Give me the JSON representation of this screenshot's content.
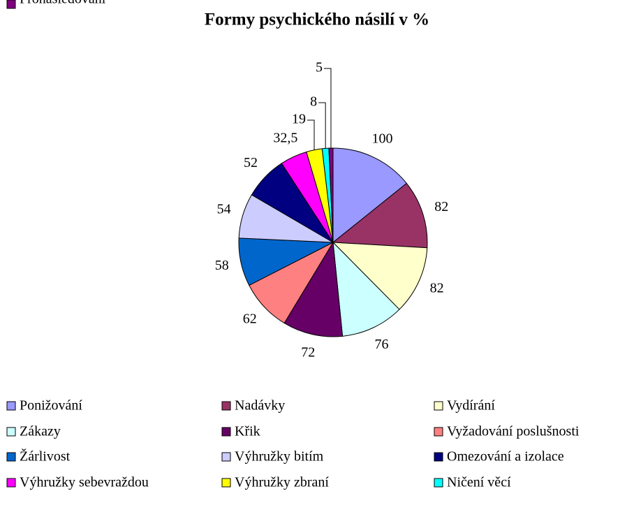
{
  "chart_data": {
    "type": "pie",
    "title": "Formy psychického násilí v %",
    "categories": [
      "Ponižování",
      "Nadávky",
      "Vydírání",
      "Zákazy",
      "Křik",
      "Vyžadování poslušnosti",
      "Žárlivost",
      "Výhružky bitím",
      "Omezování a izolace",
      "Výhružky sebevraždou",
      "Výhružky zbraní",
      "Ničení věcí",
      "Pronásledování"
    ],
    "values": [
      100,
      82,
      82,
      76,
      72,
      62,
      58,
      54,
      52,
      32.5,
      19,
      8,
      5
    ],
    "value_labels": [
      "100",
      "82",
      "82",
      "76",
      "72",
      "62",
      "58",
      "54",
      "52",
      "32,5",
      "19",
      "8",
      "5"
    ],
    "colors": [
      "#9999ff",
      "#993366",
      "#ffffcc",
      "#ccffff",
      "#660066",
      "#ff8080",
      "#0066cc",
      "#ccccff",
      "#000080",
      "#ff00ff",
      "#ffff00",
      "#00ffff",
      "#800080"
    ],
    "legend": "bottom"
  }
}
